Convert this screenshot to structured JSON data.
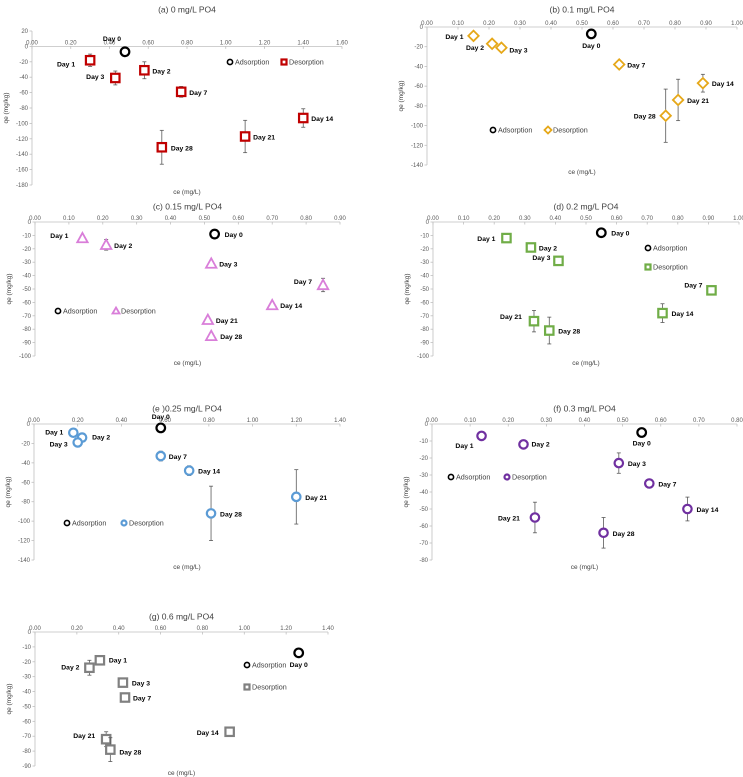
{
  "colors": {
    "adsorption": "#000000",
    "axis": "#bfbfbf",
    "text": "#000000",
    "error_bar": "#595959"
  },
  "chart_data": [
    {
      "id": "a",
      "type": "scatter",
      "title": "(a) 0 mg/L PO4",
      "xlabel": "ce (mg/L)",
      "ylabel": "qe (mg/kg)",
      "xlim": [
        0,
        1.6
      ],
      "ylim": [
        -180,
        20
      ],
      "xticks": [
        "0.00",
        "0.20",
        "0.40",
        "0.60",
        "0.80",
        "1.00",
        "1.20",
        "1.40",
        "1.60"
      ],
      "yticks": [
        "20",
        "0",
        "-20",
        "-40",
        "-60",
        "-80",
        "-100",
        "-120",
        "-140",
        "-160",
        "-180"
      ],
      "marker": "square",
      "color": "#c00000",
      "legend": {
        "adsorption": "Adsorption",
        "desorption": "Desorption"
      },
      "adsorption": {
        "label": "Day 0",
        "x": 0.48,
        "y": -7
      },
      "desorption": [
        {
          "label": "Day 1",
          "x": 0.3,
          "y": -18,
          "err": 8
        },
        {
          "label": "Day 2",
          "x": 0.58,
          "y": -31,
          "err": 11
        },
        {
          "label": "Day 3",
          "x": 0.43,
          "y": -41,
          "err": 9
        },
        {
          "label": "Day 7",
          "x": 0.77,
          "y": -59,
          "err": 7
        },
        {
          "label": "Day 14",
          "x": 1.4,
          "y": -93,
          "err": 12
        },
        {
          "label": "Day 21",
          "x": 1.1,
          "y": -117,
          "err": 21
        },
        {
          "label": "Day 28",
          "x": 0.67,
          "y": -131,
          "err": 22
        }
      ]
    },
    {
      "id": "b",
      "type": "scatter",
      "title": "(b) 0.1 mg/L PO4",
      "xlabel": "ce (mg/L)",
      "ylabel": "qe (mg/kg)",
      "xlim": [
        0,
        1.0
      ],
      "ylim": [
        -140,
        0
      ],
      "xticks": [
        "0.00",
        "0.10",
        "0.20",
        "0.30",
        "0.40",
        "0.50",
        "0.60",
        "0.70",
        "0.80",
        "0.90",
        "1.00"
      ],
      "yticks": [
        "0",
        "-20",
        "-40",
        "-60",
        "-80",
        "-100",
        "-120",
        "-140"
      ],
      "marker": "diamond",
      "color": "#e6a819",
      "legend": {
        "adsorption": "Adsorption",
        "desorption": "Desorption"
      },
      "adsorption": {
        "label": "Day 0",
        "x": 0.53,
        "y": -7
      },
      "desorption": [
        {
          "label": "Day 1",
          "x": 0.15,
          "y": -9,
          "err": 3
        },
        {
          "label": "Day 2",
          "x": 0.21,
          "y": -17,
          "err": 3
        },
        {
          "label": "Day 3",
          "x": 0.24,
          "y": -21,
          "err": 3
        },
        {
          "label": "Day 7",
          "x": 0.62,
          "y": -38,
          "err": 3
        },
        {
          "label": "Day 14",
          "x": 0.89,
          "y": -57,
          "err": 9
        },
        {
          "label": "Day 21",
          "x": 0.81,
          "y": -74,
          "err": 21
        },
        {
          "label": "Day 28",
          "x": 0.77,
          "y": -90,
          "err": 27
        }
      ]
    },
    {
      "id": "c",
      "type": "scatter",
      "title": "(c) 0.15 mg/L PO4",
      "xlabel": "ce (mg/L)",
      "ylabel": "qe (mg/kg)",
      "xlim": [
        0,
        0.9
      ],
      "ylim": [
        -100,
        0
      ],
      "xticks": [
        "0.00",
        "0.10",
        "0.20",
        "0.30",
        "0.40",
        "0.50",
        "0.60",
        "0.70",
        "0.80",
        "0.90"
      ],
      "yticks": [
        "0",
        "-10",
        "-20",
        "-30",
        "-40",
        "-50",
        "-60",
        "-70",
        "-80",
        "-90",
        "-100"
      ],
      "marker": "triangle",
      "color": "#d97ed9",
      "legend": {
        "adsorption": "Adsorption",
        "desorption": "Desorption"
      },
      "adsorption": {
        "label": "Day 0",
        "x": 0.53,
        "y": -9
      },
      "desorption": [
        {
          "label": "Day 1",
          "x": 0.14,
          "y": -12,
          "err": 2
        },
        {
          "label": "Day 2",
          "x": 0.21,
          "y": -17,
          "err": 4
        },
        {
          "label": "Day 3",
          "x": 0.52,
          "y": -31,
          "err": 2
        },
        {
          "label": "Day 7",
          "x": 0.85,
          "y": -47,
          "err": 5
        },
        {
          "label": "Day 14",
          "x": 0.7,
          "y": -62,
          "err": 1
        },
        {
          "label": "Day 21",
          "x": 0.51,
          "y": -73,
          "err": 1
        },
        {
          "label": "Day 28",
          "x": 0.52,
          "y": -85,
          "err": 2
        }
      ]
    },
    {
      "id": "d",
      "type": "scatter",
      "title": "(d) 0.2 mg/L PO4",
      "xlabel": "ce (mg/L)",
      "ylabel": "qe (mg/kg)",
      "xlim": [
        0,
        1.0
      ],
      "ylim": [
        -100,
        0
      ],
      "xticks": [
        "0.00",
        "0.10",
        "0.20",
        "0.30",
        "0.40",
        "0.50",
        "0.60",
        "0.70",
        "0.80",
        "0.90",
        "1.00"
      ],
      "yticks": [
        "0",
        "-10",
        "-20",
        "-30",
        "-40",
        "-50",
        "-60",
        "-70",
        "-80",
        "-90",
        "-100"
      ],
      "marker": "square",
      "color": "#70ad47",
      "legend": {
        "adsorption": "Adsorption",
        "desorption": "Desorption"
      },
      "adsorption": {
        "label": "Day 0",
        "x": 0.55,
        "y": -8
      },
      "desorption": [
        {
          "label": "Day 1",
          "x": 0.24,
          "y": -12,
          "err": 3
        },
        {
          "label": "Day 2",
          "x": 0.32,
          "y": -19,
          "err": 1
        },
        {
          "label": "Day 3",
          "x": 0.41,
          "y": -29,
          "err": 2
        },
        {
          "label": "Day 7",
          "x": 0.91,
          "y": -51,
          "err": 2
        },
        {
          "label": "Day 14",
          "x": 0.75,
          "y": -68,
          "err": 7
        },
        {
          "label": "Day 21",
          "x": 0.33,
          "y": -74,
          "err": 8
        },
        {
          "label": "Day 28",
          "x": 0.38,
          "y": -81,
          "err": 10
        }
      ]
    },
    {
      "id": "e",
      "type": "scatter",
      "title": "(e )0.25 mg/L PO4",
      "xlabel": "ce (mg/L)",
      "ylabel": "qe (mg/kg)",
      "xlim": [
        0,
        1.4
      ],
      "ylim": [
        -140,
        0
      ],
      "xticks": [
        "0.00",
        "0.20",
        "0.40",
        "0.60",
        "0.80",
        "1.00",
        "1.20",
        "1.40"
      ],
      "yticks": [
        "0",
        "-20",
        "-40",
        "-60",
        "-80",
        "-100",
        "-120",
        "-140"
      ],
      "marker": "circle",
      "color": "#5b9bd5",
      "legend": {
        "adsorption": "Adsorption",
        "desorption": "Desorption"
      },
      "adsorption": {
        "label": "Day 0",
        "x": 0.58,
        "y": -4
      },
      "desorption": [
        {
          "label": "Day 1",
          "x": 0.18,
          "y": -9,
          "err": 2
        },
        {
          "label": "Day 2",
          "x": 0.22,
          "y": -14,
          "err": 3
        },
        {
          "label": "Day 3",
          "x": 0.2,
          "y": -19,
          "err": 4
        },
        {
          "label": "Day 7",
          "x": 0.58,
          "y": -33,
          "err": 5
        },
        {
          "label": "Day 14",
          "x": 0.71,
          "y": -48,
          "err": 5
        },
        {
          "label": "Day 21",
          "x": 1.2,
          "y": -75,
          "err": 28
        },
        {
          "label": "Day 28",
          "x": 0.81,
          "y": -92,
          "err": 28
        }
      ]
    },
    {
      "id": "f",
      "type": "scatter",
      "title": "(f) 0.3 mg/L PO4",
      "xlabel": "ce (mg/L)",
      "ylabel": "qe (mg/kg)",
      "xlim": [
        0,
        0.8
      ],
      "ylim": [
        -80,
        0
      ],
      "xticks": [
        "0.00",
        "0.10",
        "0.20",
        "0.30",
        "0.40",
        "0.50",
        "0.60",
        "0.70",
        "0.80"
      ],
      "yticks": [
        "0",
        "-10",
        "-20",
        "-30",
        "-40",
        "-50",
        "-60",
        "-70",
        "-80"
      ],
      "marker": "circle",
      "color": "#7030a0",
      "legend": {
        "adsorption": "Adsorption",
        "desorption": "Desorption"
      },
      "adsorption": {
        "label": "Day 0",
        "x": 0.55,
        "y": -5
      },
      "desorption": [
        {
          "label": "Day 1",
          "x": 0.13,
          "y": -7,
          "err": 2
        },
        {
          "label": "Day 2",
          "x": 0.24,
          "y": -12,
          "err": 2
        },
        {
          "label": "Day 3",
          "x": 0.49,
          "y": -23,
          "err": 6
        },
        {
          "label": "Day 7",
          "x": 0.57,
          "y": -35,
          "err": 2
        },
        {
          "label": "Day 14",
          "x": 0.67,
          "y": -50,
          "err": 7
        },
        {
          "label": "Day 21",
          "x": 0.27,
          "y": -55,
          "err": 9
        },
        {
          "label": "Day 28",
          "x": 0.45,
          "y": -64,
          "err": 9
        }
      ]
    },
    {
      "id": "g",
      "type": "scatter",
      "title": "(g) 0.6 mg/L PO4",
      "xlabel": "ce (mg/L)",
      "ylabel": "qe (mg/kg)",
      "xlim": [
        0,
        1.4
      ],
      "ylim": [
        -90,
        0
      ],
      "xticks": [
        "0.00",
        "0.20",
        "0.40",
        "0.60",
        "0.80",
        "1.00",
        "1.20",
        "1.40"
      ],
      "yticks": [
        "0",
        "-10",
        "-20",
        "-30",
        "-40",
        "-50",
        "-60",
        "-70",
        "-80",
        "-90"
      ],
      "marker": "square",
      "color": "#808080",
      "legend": {
        "adsorption": "Adsorption",
        "desorption": "Desorption"
      },
      "adsorption": {
        "label": "Day 0",
        "x": 1.26,
        "y": -14
      },
      "desorption": [
        {
          "label": "Day 1",
          "x": 0.31,
          "y": -19,
          "err": 3
        },
        {
          "label": "Day 2",
          "x": 0.26,
          "y": -24,
          "err": 5
        },
        {
          "label": "Day 3",
          "x": 0.42,
          "y": -34,
          "err": 3
        },
        {
          "label": "Day 7",
          "x": 0.43,
          "y": -44,
          "err": 3
        },
        {
          "label": "Day 14",
          "x": 0.93,
          "y": -67,
          "err": 3
        },
        {
          "label": "Day 21",
          "x": 0.34,
          "y": -72,
          "err": 5
        },
        {
          "label": "Day 28",
          "x": 0.36,
          "y": -79,
          "err": 8
        }
      ]
    }
  ]
}
